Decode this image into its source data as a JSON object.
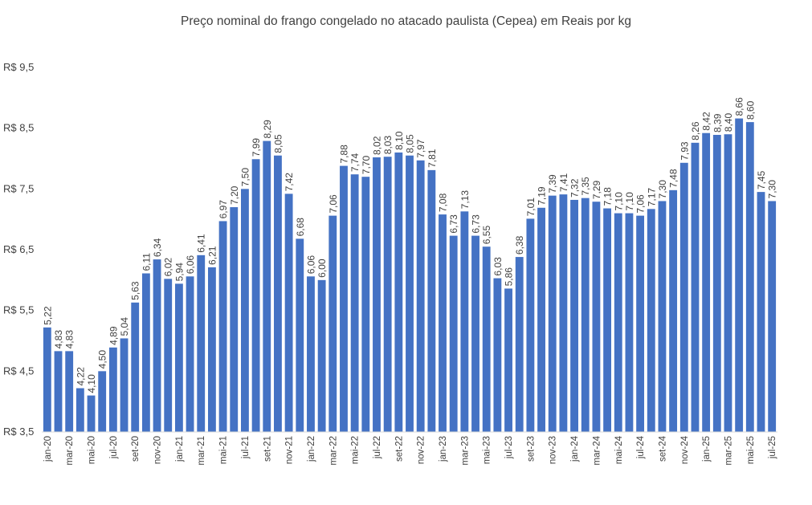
{
  "chart_data": {
    "type": "bar",
    "title": "Preço nominal do frango congelado no atacado paulista (Cepea) em Reais por kg",
    "xlabel": "",
    "ylabel": "",
    "ylim": [
      3.5,
      9.5
    ],
    "yticks": [
      {
        "value": 3.5,
        "label": "R$ 3,5"
      },
      {
        "value": 4.5,
        "label": "R$ 4,5"
      },
      {
        "value": 5.5,
        "label": "R$ 5,5"
      },
      {
        "value": 6.5,
        "label": "R$ 6,5"
      },
      {
        "value": 7.5,
        "label": "R$ 7,5"
      },
      {
        "value": 8.5,
        "label": "R$ 8,5"
      },
      {
        "value": 9.5,
        "label": "R$ 9,5"
      }
    ],
    "grid": false,
    "bar_color": "#4472C4",
    "categories": [
      "jan-20",
      "fev-20",
      "mar-20",
      "abr-20",
      "mai-20",
      "jun-20",
      "jul-20",
      "ago-20",
      "set-20",
      "out-20",
      "nov-20",
      "dez-20",
      "jan-21",
      "fev-21",
      "mar-21",
      "abr-21",
      "mai-21",
      "jun-21",
      "jul-21",
      "ago-21",
      "set-21",
      "out-21",
      "nov-21",
      "dez-21",
      "jan-22",
      "fev-22",
      "mar-22",
      "abr-22",
      "mai-22",
      "jun-22",
      "jul-22",
      "ago-22",
      "set-22",
      "out-22",
      "nov-22",
      "dez-22",
      "jan-23",
      "fev-23",
      "mar-23",
      "abr-23",
      "mai-23",
      "jun-23",
      "jul-23",
      "ago-23",
      "set-23",
      "out-23",
      "nov-23",
      "dez-23",
      "jan-24",
      "fev-24",
      "mar-24",
      "abr-24",
      "mai-24",
      "jun-24",
      "jul-24",
      "ago-24",
      "set-24",
      "out-24",
      "nov-24",
      "dez-24",
      "jan-25",
      "fev-25",
      "mar-25",
      "abr-25",
      "mai-25",
      "jun-25",
      "jul-25"
    ],
    "shown_tick_labels": [
      "jan-20",
      "mar-20",
      "mai-20",
      "jul-20",
      "set-20",
      "nov-20",
      "jan-21",
      "mar-21",
      "mai-21",
      "jul-21",
      "set-21",
      "nov-21",
      "jan-22",
      "mar-22",
      "mai-22",
      "jul-22",
      "set-22",
      "nov-22",
      "jan-23",
      "mar-23",
      "mai-23",
      "jul-23",
      "set-23",
      "nov-23",
      "jan-24",
      "mar-24",
      "mai-24",
      "jul-24",
      "set-24",
      "nov-24",
      "jan-25",
      "mar-25",
      "mai-25",
      "jul-25"
    ],
    "values": [
      5.22,
      4.83,
      4.83,
      4.22,
      4.1,
      4.5,
      4.89,
      5.04,
      5.63,
      6.11,
      6.34,
      6.02,
      5.94,
      6.06,
      6.41,
      6.21,
      6.97,
      7.2,
      7.5,
      7.99,
      8.29,
      8.05,
      7.42,
      6.68,
      6.06,
      6.0,
      7.06,
      7.88,
      7.74,
      7.7,
      8.02,
      8.03,
      8.1,
      8.05,
      7.97,
      7.81,
      7.08,
      6.73,
      7.13,
      6.73,
      6.55,
      6.03,
      5.86,
      6.38,
      7.01,
      7.19,
      7.39,
      7.41,
      7.32,
      7.35,
      7.29,
      7.18,
      7.1,
      7.1,
      7.06,
      7.17,
      7.3,
      7.48,
      7.93,
      8.26,
      8.42,
      8.39,
      8.4,
      8.66,
      8.6,
      7.45,
      7.3
    ],
    "value_labels": [
      "5,22",
      "4,83",
      "4,83",
      "4,22",
      "4,10",
      "4,50",
      "4,89",
      "5,04",
      "5,63",
      "6,11",
      "6,34",
      "6,02",
      "5,94",
      "6,06",
      "6,41",
      "6,21",
      "6,97",
      "7,20",
      "7,50",
      "7,99",
      "8,29",
      "8,05",
      "7,42",
      "6,68",
      "6,06",
      "6,00",
      "7,06",
      "7,88",
      "7,74",
      "7,70",
      "8,02",
      "8,03",
      "8,10",
      "8,05",
      "7,97",
      "7,81",
      "7,08",
      "6,73",
      "7,13",
      "6,73",
      "6,55",
      "6,03",
      "5,86",
      "6,38",
      "7,01",
      "7,19",
      "7,39",
      "7,41",
      "7,32",
      "7,35",
      "7,29",
      "7,18",
      "7,10",
      "7,10",
      "7,06",
      "7,17",
      "7,30",
      "7,48",
      "7,93",
      "8,26",
      "8,42",
      "8,39",
      "8,40",
      "8,66",
      "8,60",
      "7,45",
      "7,30"
    ]
  }
}
